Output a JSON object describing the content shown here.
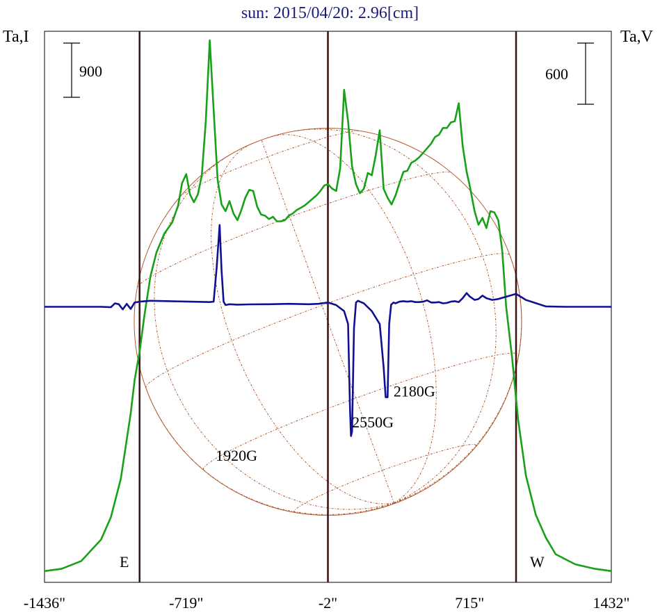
{
  "chart_data": {
    "type": "line",
    "title": "sun: 2015/04/20: 2.96[cm]",
    "ylabel_left": "Ta,I",
    "ylabel_right": "Ta,V",
    "scale_left": "900",
    "scale_right": "600",
    "xlim": [
      -1436,
      1432
    ],
    "x_tick_labels": [
      "-1436\"",
      "-719\"",
      "-2\"",
      "715\"",
      "1432\""
    ],
    "x_ticks": [
      -1436,
      -719,
      -2,
      715,
      1432
    ],
    "limb_labels": {
      "east": "E",
      "west": "W"
    },
    "vertical_lines": [
      -955,
      -2,
      950
    ],
    "grid": false,
    "colors": {
      "I": "#18a018",
      "V": "#101090",
      "lines": "#3a1010",
      "disk": "#b05a30",
      "title": "#1a1a80"
    },
    "annotations": [
      {
        "text": "1920G",
        "x": -570,
        "y": 980
      },
      {
        "text": "2180G",
        "x": 330,
        "y": -1040
      },
      {
        "text": "2550G",
        "x": 120,
        "y": -1400
      }
    ],
    "series": [
      {
        "name": "Ta,I",
        "ylim": [
          -100,
          4800
        ],
        "x": [
          -1436,
          -1350,
          -1250,
          -1150,
          -1100,
          -1050,
          -1000,
          -980,
          -955,
          -930,
          -900,
          -870,
          -830,
          -790,
          -760,
          -740,
          -719,
          -700,
          -680,
          -660,
          -640,
          -620,
          -600,
          -580,
          -560,
          -540,
          -520,
          -500,
          -480,
          -460,
          -440,
          -420,
          -400,
          -380,
          -360,
          -340,
          -320,
          -300,
          -280,
          -260,
          -240,
          -220,
          -200,
          -180,
          -160,
          -140,
          -120,
          -100,
          -80,
          -60,
          -40,
          -20,
          -2,
          20,
          40,
          60,
          80,
          100,
          120,
          140,
          160,
          180,
          200,
          220,
          240,
          260,
          280,
          300,
          320,
          340,
          360,
          380,
          400,
          420,
          440,
          460,
          480,
          500,
          520,
          540,
          560,
          580,
          600,
          620,
          640,
          660,
          680,
          700,
          715,
          740,
          760,
          780,
          800,
          820,
          840,
          860,
          880,
          900,
          930,
          960,
          1000,
          1050,
          1100,
          1150,
          1250,
          1350,
          1432
        ],
        "y": [
          0,
          20,
          90,
          280,
          480,
          820,
          1400,
          1700,
          1950,
          2280,
          2620,
          2830,
          3000,
          3100,
          3250,
          3450,
          3530,
          3350,
          3280,
          3350,
          3520,
          4000,
          4720,
          4100,
          3480,
          3260,
          3200,
          3290,
          3180,
          3120,
          3210,
          3320,
          3390,
          3380,
          3240,
          3170,
          3160,
          3130,
          3150,
          3110,
          3110,
          3120,
          3160,
          3180,
          3210,
          3230,
          3250,
          3280,
          3310,
          3340,
          3380,
          3430,
          3440,
          3400,
          3380,
          3580,
          4280,
          4000,
          3600,
          3440,
          3360,
          3400,
          3540,
          3520,
          3700,
          3920,
          3400,
          3320,
          3260,
          3340,
          3450,
          3550,
          3560,
          3630,
          3650,
          3680,
          3720,
          3760,
          3800,
          3860,
          3880,
          3940,
          3940,
          3990,
          4000,
          4160,
          3780,
          3550,
          3430,
          3200,
          3080,
          3140,
          3050,
          3200,
          3190,
          3120,
          2850,
          2350,
          1900,
          1350,
          850,
          500,
          300,
          150,
          60,
          20,
          0
        ]
      },
      {
        "name": "Ta,V",
        "ylim": [
          -3200,
          3200
        ],
        "x": [
          -1436,
          -1150,
          -1100,
          -1080,
          -1060,
          -1040,
          -1020,
          -1000,
          -980,
          -955,
          -900,
          -800,
          -700,
          -600,
          -580,
          -565,
          -550,
          -540,
          -530,
          -520,
          -500,
          -460,
          -400,
          -300,
          -200,
          -100,
          -50,
          -2,
          40,
          80,
          100,
          110,
          115,
          120,
          130,
          140,
          150,
          160,
          180,
          220,
          260,
          280,
          290,
          300,
          308,
          318,
          330,
          340,
          350,
          360,
          380,
          400,
          420,
          440,
          460,
          480,
          500,
          520,
          540,
          560,
          580,
          600,
          620,
          640,
          660,
          680,
          700,
          715,
          740,
          760,
          780,
          800,
          830,
          860,
          950,
          1000,
          1100,
          1200,
          1300,
          1432
        ],
        "y": [
          0,
          0,
          -5,
          40,
          30,
          -30,
          35,
          -25,
          50,
          60,
          70,
          65,
          60,
          55,
          60,
          450,
          950,
          420,
          60,
          20,
          30,
          25,
          28,
          30,
          35,
          30,
          35,
          50,
          20,
          -50,
          -200,
          -1200,
          -1500,
          -1450,
          -250,
          50,
          70,
          60,
          40,
          -50,
          -200,
          -700,
          -1050,
          -1050,
          -200,
          25,
          50,
          40,
          50,
          60,
          65,
          60,
          65,
          55,
          55,
          60,
          75,
          50,
          50,
          55,
          40,
          45,
          60,
          65,
          55,
          100,
          160,
          120,
          80,
          90,
          130,
          100,
          80,
          90,
          150,
          80,
          5,
          0,
          0,
          0
        ]
      }
    ]
  }
}
